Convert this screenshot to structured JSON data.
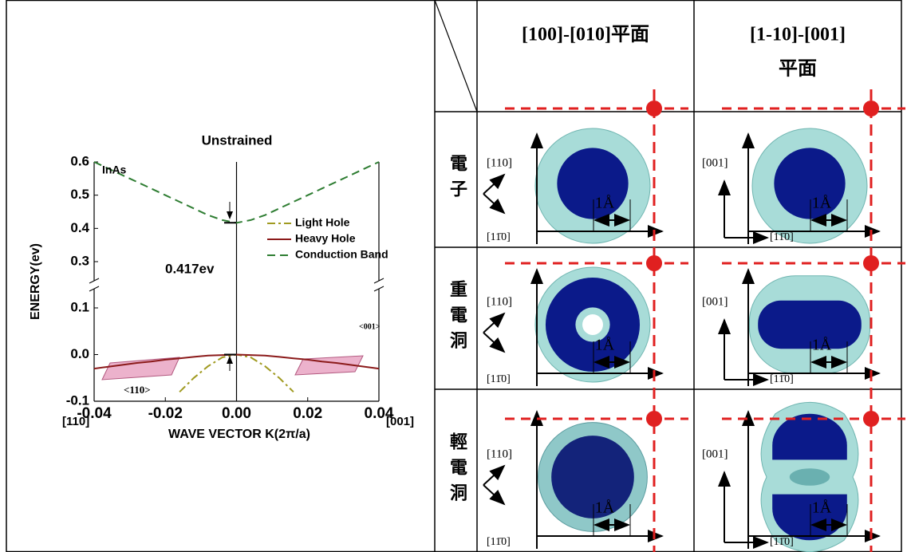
{
  "chart_data": {
    "type": "line",
    "title": "Unstrained",
    "xlabel": "WAVE VECTOR K(2π/a)",
    "ylabel": "ENERGY(ev)",
    "x": [
      -0.04,
      -0.036,
      -0.032,
      -0.028,
      -0.024,
      -0.02,
      -0.016,
      -0.012,
      -0.008,
      -0.004,
      0,
      0.004,
      0.008,
      0.012,
      0.016,
      0.02,
      0.024,
      0.028,
      0.032,
      0.036,
      0.04
    ],
    "series": [
      {
        "name": "Light Hole",
        "color": "#a09a20",
        "values": [
          null,
          null,
          null,
          null,
          null,
          null,
          -0.08,
          -0.05,
          -0.025,
          -0.006,
          0,
          -0.006,
          -0.025,
          -0.05,
          -0.08,
          null,
          null,
          null,
          null,
          null,
          null
        ]
      },
      {
        "name": "Heavy Hole",
        "color": "#8b1a1a",
        "values": [
          -0.03,
          -0.026,
          -0.022,
          -0.018,
          -0.015,
          -0.011,
          -0.008,
          -0.005,
          -0.002,
          -0.001,
          0,
          -0.001,
          -0.002,
          -0.005,
          -0.008,
          -0.011,
          -0.015,
          -0.018,
          -0.022,
          -0.026,
          -0.03
        ]
      },
      {
        "name": "Conduction Band",
        "color": "#2e7d32",
        "values": [
          0.6,
          0.58,
          0.56,
          0.54,
          0.52,
          0.5,
          0.48,
          0.46,
          0.44,
          0.425,
          0.417,
          0.425,
          0.44,
          0.46,
          0.48,
          0.5,
          0.52,
          0.54,
          0.56,
          0.58,
          0.6
        ]
      }
    ],
    "xlim": [
      -0.04,
      0.04
    ],
    "ylim": [
      -0.1,
      0.6
    ],
    "axis_break": [
      0.1,
      0.3
    ],
    "xticks": [
      -0.04,
      -0.02,
      {
        "value": 0,
        "label": "0.00"
      },
      0.02,
      0.04
    ],
    "yticks": [
      -0.1,
      {
        "value": 0,
        "label": "0.0"
      },
      0.1,
      0.3,
      0.4,
      0.5,
      0.6
    ],
    "x_end_labels": [
      "[110]",
      "[001]"
    ],
    "annotations": [
      "InAs",
      "0.417ev",
      "<110>",
      "<001>"
    ]
  },
  "table": {
    "header": [
      [
        "[100]-[010]平面"
      ],
      [
        "[1-10]-[001]",
        "平面"
      ]
    ],
    "rows": [
      {
        "label": "電子",
        "cells": [
          {
            "up": "[110]",
            "side": "[11̄0]",
            "scale": "1Å"
          },
          {
            "up": "[001]",
            "side": "[11̄0]",
            "scale": "1Å"
          }
        ]
      },
      {
        "label": "重電洞",
        "cells": [
          {
            "up": "[110]",
            "side": "[11̄0]",
            "scale": "1Å"
          },
          {
            "up": "[001]",
            "side": "[11̄0]",
            "scale": "1Å"
          }
        ]
      },
      {
        "label": "輕電洞",
        "cells": [
          {
            "up": "[110]",
            "side": "[11̄0]",
            "scale": "1Å"
          },
          {
            "up": "[001]",
            "side": "[11̄0]",
            "scale": "1Å"
          }
        ]
      }
    ]
  }
}
